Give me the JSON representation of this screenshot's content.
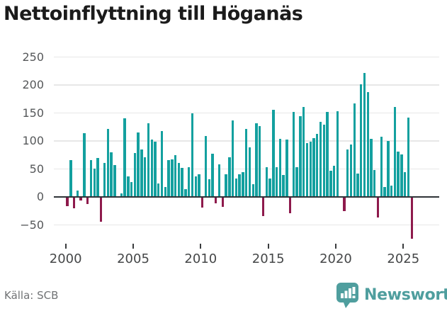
{
  "title": "Nettoinflyttning till Höganäs",
  "source": "Källa: SCB",
  "branding": {
    "logo_icon": "newsworthy-bar-chart-speech-bubble",
    "logo_text": "Newsworthy",
    "logo_color": "#4f9e9e"
  },
  "chart_data": {
    "type": "bar",
    "title": "Nettoinflyttning till Höganäs",
    "frequency": "quarterly",
    "x_start": "2000 Q1",
    "x_end": "2025 Q3",
    "values": [
      -15,
      65,
      -18,
      10,
      -4,
      113,
      -11,
      65,
      49,
      68,
      -43,
      60,
      120,
      79,
      56,
      0,
      5,
      139,
      36,
      25,
      77,
      114,
      83,
      70,
      131,
      101,
      98,
      23,
      117,
      17,
      64,
      66,
      74,
      59,
      51,
      13,
      52,
      148,
      35,
      39,
      -17,
      108,
      30,
      76,
      -10,
      57,
      -16,
      39,
      70,
      136,
      32,
      39,
      43,
      120,
      87,
      21,
      131,
      125,
      -32,
      52,
      32,
      155,
      52,
      102,
      38,
      101,
      -27,
      151,
      52,
      143,
      159,
      95,
      97,
      104,
      112,
      133,
      128,
      151,
      46,
      54,
      152,
      0,
      -24,
      83,
      93,
      166,
      40,
      200,
      220,
      186,
      103,
      47,
      -35,
      106,
      16,
      99,
      19,
      160,
      80,
      75,
      43,
      141,
      -73
    ],
    "xticks": [
      2000,
      2005,
      2010,
      2015,
      2020,
      2025
    ],
    "yticks": [
      -50,
      0,
      50,
      100,
      150,
      200,
      250
    ],
    "ylim": [
      -80,
      255
    ],
    "grid": "horizontal",
    "legend": "none",
    "positive_color": "#13a09f",
    "negative_color": "#8e1a4c"
  }
}
